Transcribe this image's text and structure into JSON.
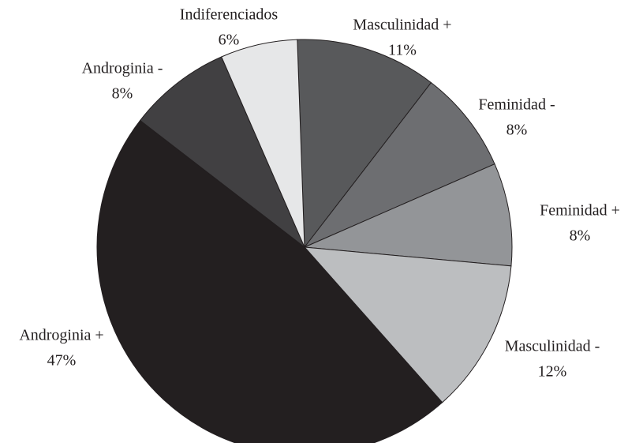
{
  "chart_data": {
    "type": "pie",
    "categories": [
      "Masculinidad +",
      "Feminidad -",
      "Feminidad +",
      "Masculinidad -",
      "Androginia +",
      "Androginia -",
      "Indiferenciados"
    ],
    "values": [
      11,
      8,
      8,
      12,
      47,
      8,
      6
    ],
    "value_labels": [
      "11%",
      "8%",
      "8%",
      "12%",
      "47%",
      "8%",
      "6%"
    ],
    "colors": [
      "#58595b",
      "#6d6e71",
      "#939598",
      "#bcbec0",
      "#231f20",
      "#414042",
      "#e6e7e8"
    ]
  }
}
